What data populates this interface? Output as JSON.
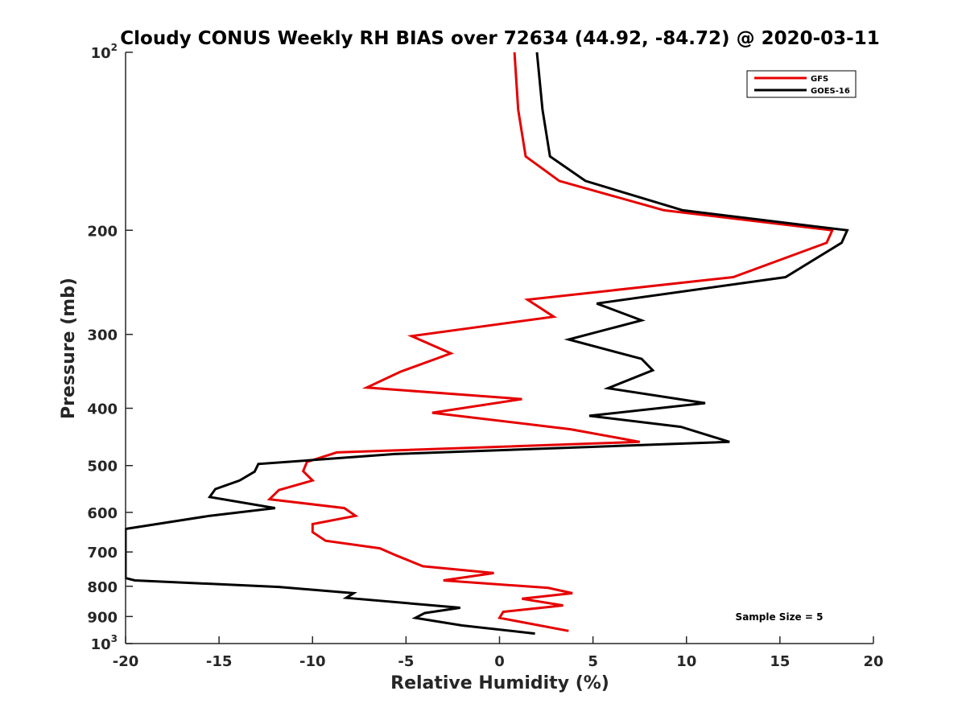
{
  "chart_data": {
    "type": "line",
    "title": "Cloudy CONUS Weekly RH BIAS over 72634 (44.92, -84.72) @ 2020-03-11",
    "xlabel": "Relative Humidity (%)",
    "ylabel": "Pressure (mb)",
    "xlim": [
      -20,
      20
    ],
    "ylim": [
      100,
      1000
    ],
    "y_scale": "log",
    "y_reversed": true,
    "grid": false,
    "x_ticks": [
      "-20",
      "-15",
      "-10",
      "-5",
      "0",
      "5",
      "10",
      "15",
      "20"
    ],
    "y_ticks": [
      {
        "value": 100,
        "label": "10",
        "sup": "2"
      },
      {
        "value": 200,
        "label": "200"
      },
      {
        "value": 300,
        "label": "300"
      },
      {
        "value": 400,
        "label": "400"
      },
      {
        "value": 500,
        "label": "500"
      },
      {
        "value": 600,
        "label": "600"
      },
      {
        "value": 700,
        "label": "700"
      },
      {
        "value": 800,
        "label": "800"
      },
      {
        "value": 900,
        "label": "900"
      },
      {
        "value": 1000,
        "label": "10",
        "sup": "3"
      }
    ],
    "legend_position": "top-right",
    "annotation": "Sample Size = 5",
    "series": [
      {
        "name": "GFS",
        "color": "#e60000",
        "points": [
          [
            0.8,
            100
          ],
          [
            1.0,
            125
          ],
          [
            1.4,
            150
          ],
          [
            3.2,
            165
          ],
          [
            8.8,
            185
          ],
          [
            17.8,
            200
          ],
          [
            17.5,
            210
          ],
          [
            12.5,
            240
          ],
          [
            1.5,
            262
          ],
          [
            2.9,
            280
          ],
          [
            -4.7,
            302
          ],
          [
            -2.6,
            323
          ],
          [
            -5.3,
            347
          ],
          [
            -7.1,
            369
          ],
          [
            1.2,
            386
          ],
          [
            -3.6,
            407
          ],
          [
            3.8,
            434
          ],
          [
            7.5,
            456
          ],
          [
            -8.7,
            475
          ],
          [
            -10.3,
            493
          ],
          [
            -10.5,
            511
          ],
          [
            -10.0,
            530
          ],
          [
            -11.8,
            550
          ],
          [
            -12.3,
            570
          ],
          [
            -8.3,
            590
          ],
          [
            -7.7,
            608
          ],
          [
            -10.0,
            628
          ],
          [
            -10.0,
            648
          ],
          [
            -9.3,
            670
          ],
          [
            -6.4,
            690
          ],
          [
            -5.5,
            710
          ],
          [
            -4.1,
            740
          ],
          [
            -0.3,
            760
          ],
          [
            -3.0,
            782
          ],
          [
            2.6,
            805
          ],
          [
            3.9,
            822
          ],
          [
            1.2,
            840
          ],
          [
            3.4,
            862
          ],
          [
            0.2,
            884
          ],
          [
            0.0,
            905
          ],
          [
            3.7,
            952
          ]
        ]
      },
      {
        "name": "GOES-16",
        "color": "#000000",
        "points": [
          [
            2.0,
            100
          ],
          [
            2.3,
            125
          ],
          [
            2.7,
            150
          ],
          [
            4.6,
            165
          ],
          [
            9.8,
            185
          ],
          [
            18.6,
            200
          ],
          [
            18.3,
            210
          ],
          [
            15.3,
            240
          ],
          [
            5.2,
            266
          ],
          [
            7.6,
            284
          ],
          [
            3.7,
            306
          ],
          [
            7.6,
            330
          ],
          [
            8.2,
            345
          ],
          [
            5.8,
            370
          ],
          [
            11.0,
            392
          ],
          [
            4.8,
            412
          ],
          [
            9.7,
            430
          ],
          [
            12.3,
            456
          ],
          [
            -5.6,
            478
          ],
          [
            -12.9,
            497
          ],
          [
            -13.1,
            512
          ],
          [
            -13.9,
            530
          ],
          [
            -15.2,
            548
          ],
          [
            -15.5,
            565
          ],
          [
            -12.0,
            590
          ],
          [
            -15.5,
            608
          ],
          [
            -20.0,
            640
          ],
          [
            -20.0,
            775
          ],
          [
            -19.5,
            782
          ],
          [
            -11.8,
            802
          ],
          [
            -7.8,
            822
          ],
          [
            -8.2,
            837
          ],
          [
            -2.1,
            870
          ],
          [
            -4.0,
            888
          ],
          [
            -4.5,
            905
          ],
          [
            -2.0,
            932
          ],
          [
            1.9,
            962
          ]
        ]
      }
    ]
  }
}
